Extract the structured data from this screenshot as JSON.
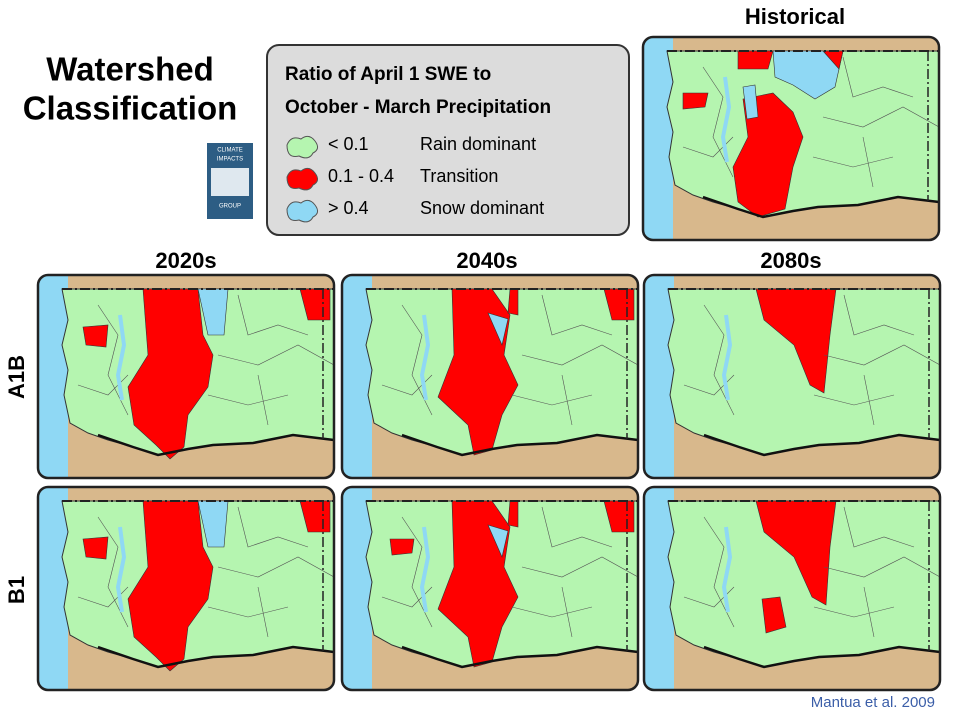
{
  "title": [
    "Watershed",
    "Classification"
  ],
  "logo": [
    "CLIMATE",
    "IMPACTS",
    "GROUP"
  ],
  "legend": {
    "title": [
      "Ratio of April 1 SWE to",
      "October - March Precipitation"
    ],
    "items": [
      {
        "range": "< 0.1",
        "label": "Rain dominant",
        "color": "#b5f5b0"
      },
      {
        "range": "0.1 - 0.4",
        "label": "Transition",
        "color": "#ff0000"
      },
      {
        "range": "> 0.4",
        "label": "Snow dominant",
        "color": "#8fd8f4"
      }
    ]
  },
  "panels": {
    "historical": "Historical",
    "columns": [
      "2020s",
      "2040s",
      "2080s"
    ],
    "rows": [
      "A1B",
      "B1"
    ]
  },
  "citation": "Mantua et al. 2009"
}
